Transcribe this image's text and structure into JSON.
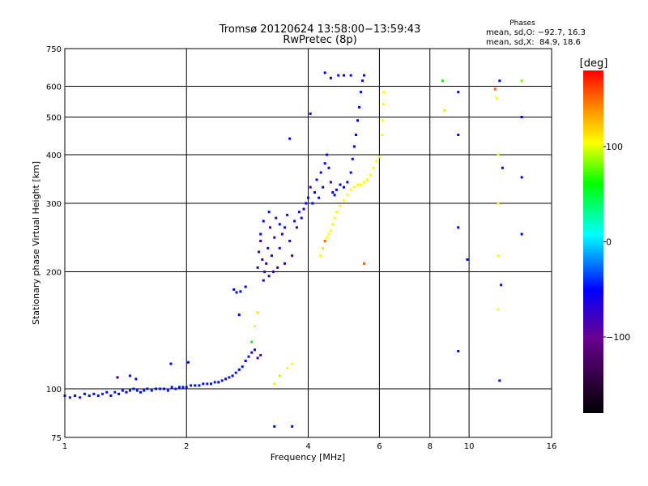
{
  "chart_data": {
    "type": "scatter",
    "title": "Tromsø 20120624 13:58:00−13:59:43",
    "subtitle": "RwPretec (8p)",
    "xlabel": "Frequency [MHz]",
    "ylabel": "Stationary phase Virtual Height [km]",
    "xscale": "log",
    "yscale": "log",
    "xlim": [
      1,
      16
    ],
    "ylim": [
      75,
      750
    ],
    "xticks": [
      1,
      2,
      4,
      6,
      8,
      10,
      16
    ],
    "yticks": [
      75,
      100,
      200,
      300,
      400,
      500,
      600,
      750
    ],
    "grid": true,
    "phase_info": {
      "title": "Phases",
      "o_mode": "mean, sd,O: −92.7, 16.3",
      "x_mode": "mean, sd,X:  84.9, 18.6"
    },
    "colorbar": {
      "label": "[deg]",
      "range": [
        -180,
        180
      ],
      "ticks": [
        100,
        0,
        -100
      ],
      "tick_labels": [
        "100",
        "0",
        "−100"
      ]
    },
    "points_format": [
      "frequency_MHz",
      "height_km",
      "phase_deg"
    ],
    "points": [
      [
        1.0,
        96,
        -95
      ],
      [
        1.03,
        95,
        -95
      ],
      [
        1.06,
        96,
        -100
      ],
      [
        1.09,
        95,
        -95
      ],
      [
        1.12,
        97,
        -100
      ],
      [
        1.15,
        96,
        -95
      ],
      [
        1.18,
        97,
        -100
      ],
      [
        1.21,
        96,
        -95
      ],
      [
        1.24,
        97,
        -95
      ],
      [
        1.27,
        98,
        -100
      ],
      [
        1.3,
        96,
        -105
      ],
      [
        1.33,
        98,
        -95
      ],
      [
        1.36,
        97,
        -100
      ],
      [
        1.39,
        99,
        -95
      ],
      [
        1.42,
        98,
        -100
      ],
      [
        1.45,
        99,
        -95
      ],
      [
        1.48,
        100,
        -100
      ],
      [
        1.51,
        99,
        -95
      ],
      [
        1.54,
        98,
        -100
      ],
      [
        1.57,
        99,
        -95
      ],
      [
        1.6,
        100,
        -100
      ],
      [
        1.64,
        99,
        -95
      ],
      [
        1.68,
        100,
        -100
      ],
      [
        1.72,
        100,
        -95
      ],
      [
        1.76,
        100,
        -100
      ],
      [
        1.8,
        99,
        -95
      ],
      [
        1.84,
        101,
        -100
      ],
      [
        1.88,
        100,
        -95
      ],
      [
        1.92,
        101,
        -100
      ],
      [
        1.96,
        101,
        -95
      ],
      [
        2.0,
        101,
        -100
      ],
      [
        2.05,
        102,
        -95
      ],
      [
        2.1,
        102,
        -100
      ],
      [
        2.15,
        102,
        -95
      ],
      [
        2.2,
        103,
        -100
      ],
      [
        2.25,
        103,
        -95
      ],
      [
        2.3,
        103,
        -100
      ],
      [
        2.35,
        104,
        -95
      ],
      [
        2.4,
        104,
        -100
      ],
      [
        2.45,
        105,
        -95
      ],
      [
        2.5,
        106,
        -100
      ],
      [
        2.55,
        107,
        -95
      ],
      [
        2.6,
        108,
        -100
      ],
      [
        2.65,
        110,
        -95
      ],
      [
        2.7,
        112,
        -100
      ],
      [
        2.75,
        114,
        -95
      ],
      [
        2.8,
        118,
        -100
      ],
      [
        2.85,
        121,
        -95
      ],
      [
        2.9,
        124,
        -110
      ],
      [
        2.95,
        126,
        -120
      ],
      [
        3.0,
        120,
        -130
      ],
      [
        3.05,
        122,
        -135
      ],
      [
        1.35,
        107,
        -150
      ],
      [
        1.45,
        108,
        -100
      ],
      [
        1.5,
        106,
        -100
      ],
      [
        1.83,
        116,
        -100
      ],
      [
        2.02,
        117,
        -100
      ],
      [
        2.7,
        155,
        -100
      ],
      [
        2.62,
        180,
        -100
      ],
      [
        2.66,
        177,
        -100
      ],
      [
        2.72,
        178,
        -100
      ],
      [
        2.8,
        183,
        -100
      ],
      [
        3.0,
        205,
        -130
      ],
      [
        3.02,
        225,
        -130
      ],
      [
        3.05,
        240,
        -130
      ],
      [
        3.08,
        215,
        -130
      ],
      [
        3.1,
        190,
        -120
      ],
      [
        3.12,
        200,
        -130
      ],
      [
        3.15,
        210,
        -130
      ],
      [
        3.18,
        230,
        -120
      ],
      [
        3.2,
        195,
        -130
      ],
      [
        3.22,
        260,
        -130
      ],
      [
        3.25,
        220,
        -130
      ],
      [
        3.28,
        200,
        -120
      ],
      [
        3.3,
        245,
        -130
      ],
      [
        3.33,
        275,
        -130
      ],
      [
        3.36,
        205,
        -130
      ],
      [
        3.4,
        230,
        -120
      ],
      [
        3.45,
        250,
        -130
      ],
      [
        3.5,
        210,
        -120
      ],
      [
        3.55,
        280,
        -130
      ],
      [
        3.6,
        240,
        -120
      ],
      [
        3.65,
        220,
        -130
      ],
      [
        3.7,
        270,
        -120
      ],
      [
        3.75,
        260,
        -130
      ],
      [
        3.8,
        285,
        -110
      ],
      [
        3.05,
        250,
        -100
      ],
      [
        3.1,
        270,
        -100
      ],
      [
        3.2,
        285,
        -100
      ],
      [
        3.4,
        265,
        -100
      ],
      [
        3.5,
        260,
        -100
      ],
      [
        3.6,
        440,
        -100
      ],
      [
        3.85,
        275,
        -100
      ],
      [
        3.9,
        290,
        -100
      ],
      [
        3.95,
        300,
        -100
      ],
      [
        4.0,
        310,
        -100
      ],
      [
        4.05,
        330,
        -110
      ],
      [
        4.1,
        300,
        -100
      ],
      [
        4.15,
        320,
        -100
      ],
      [
        4.2,
        345,
        -110
      ],
      [
        4.25,
        310,
        -100
      ],
      [
        4.3,
        360,
        -100
      ],
      [
        4.35,
        330,
        -100
      ],
      [
        4.4,
        380,
        -100
      ],
      [
        4.45,
        400,
        -100
      ],
      [
        4.5,
        370,
        -100
      ],
      [
        4.55,
        340,
        -110
      ],
      [
        4.6,
        320,
        -100
      ],
      [
        4.65,
        315,
        -100
      ],
      [
        4.7,
        325,
        -100
      ],
      [
        4.8,
        335,
        -100
      ],
      [
        4.9,
        330,
        -100
      ],
      [
        5.0,
        340,
        -100
      ],
      [
        5.1,
        360,
        -100
      ],
      [
        5.15,
        390,
        -100
      ],
      [
        5.2,
        420,
        -100
      ],
      [
        5.25,
        450,
        -100
      ],
      [
        5.3,
        490,
        -100
      ],
      [
        5.35,
        530,
        -100
      ],
      [
        5.4,
        580,
        -100
      ],
      [
        5.45,
        620,
        -100
      ],
      [
        5.5,
        640,
        -100
      ],
      [
        4.05,
        510,
        -100
      ],
      [
        4.4,
        650,
        -100
      ],
      [
        4.55,
        630,
        -100
      ],
      [
        4.75,
        640,
        -100
      ],
      [
        4.9,
        640,
        -100
      ],
      [
        5.1,
        640,
        -100
      ],
      [
        4.3,
        220,
        100
      ],
      [
        4.35,
        230,
        110
      ],
      [
        4.4,
        240,
        150
      ],
      [
        4.45,
        245,
        100
      ],
      [
        4.5,
        250,
        100
      ],
      [
        4.55,
        255,
        100
      ],
      [
        4.6,
        265,
        100
      ],
      [
        4.65,
        275,
        100
      ],
      [
        4.7,
        285,
        100
      ],
      [
        4.8,
        295,
        100
      ],
      [
        4.9,
        305,
        100
      ],
      [
        5.0,
        315,
        100
      ],
      [
        5.1,
        325,
        100
      ],
      [
        5.2,
        330,
        100
      ],
      [
        5.3,
        335,
        100
      ],
      [
        5.4,
        335,
        100
      ],
      [
        5.5,
        340,
        100
      ],
      [
        5.6,
        345,
        100
      ],
      [
        5.7,
        355,
        100
      ],
      [
        5.8,
        370,
        100
      ],
      [
        5.9,
        385,
        100
      ],
      [
        6.0,
        395,
        100
      ],
      [
        6.1,
        450,
        100
      ],
      [
        6.12,
        490,
        100
      ],
      [
        6.14,
        540,
        100
      ],
      [
        6.15,
        580,
        100
      ],
      [
        3.3,
        103,
        90
      ],
      [
        3.4,
        108,
        80
      ],
      [
        3.55,
        113,
        100
      ],
      [
        3.65,
        116,
        100
      ],
      [
        2.9,
        132,
        30
      ],
      [
        2.95,
        145,
        100
      ],
      [
        3.0,
        157,
        110
      ],
      [
        5.5,
        210,
        150
      ],
      [
        3.3,
        80,
        -100
      ],
      [
        3.65,
        80,
        -100
      ],
      [
        8.6,
        620,
        30
      ],
      [
        8.7,
        520,
        110
      ],
      [
        9.4,
        580,
        -100
      ],
      [
        9.4,
        450,
        -100
      ],
      [
        9.4,
        260,
        -100
      ],
      [
        9.4,
        125,
        -100
      ],
      [
        9.9,
        215,
        -100
      ],
      [
        11.6,
        590,
        150
      ],
      [
        11.7,
        560,
        100
      ],
      [
        11.8,
        400,
        100
      ],
      [
        11.8,
        300,
        100
      ],
      [
        11.8,
        220,
        100
      ],
      [
        11.8,
        160,
        100
      ],
      [
        11.9,
        620,
        -100
      ],
      [
        11.9,
        105,
        -100
      ],
      [
        12.0,
        185,
        -100
      ],
      [
        12.1,
        370,
        -100
      ],
      [
        13.5,
        620,
        60
      ],
      [
        13.5,
        500,
        -100
      ],
      [
        13.5,
        350,
        -100
      ],
      [
        13.5,
        250,
        -100
      ]
    ]
  }
}
